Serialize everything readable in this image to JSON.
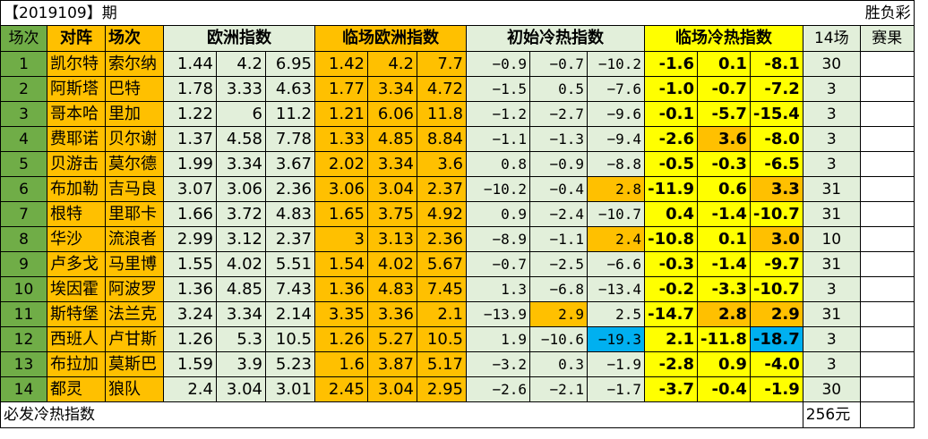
{
  "sheet": {
    "title": "【2019109】期",
    "top_right": "胜负彩",
    "footer_label": "必发冷热指数",
    "footer_value": "256元"
  },
  "headers": {
    "idx": "场次",
    "match_a": "对阵",
    "match_b": "场次",
    "euro": "欧洲指数",
    "live_euro": "临场欧洲指数",
    "init_heat": "初始冷热指数",
    "live_heat": "临场冷热指数",
    "count": "14场",
    "result": "赛果"
  },
  "rows": [
    {
      "idx": "1",
      "home": "凯尔特",
      "away": "索尔纳",
      "euro": [
        "1.44",
        "4.2",
        "6.95"
      ],
      "live_euro": [
        "1.42",
        "4.2",
        "7.7"
      ],
      "init": [
        "−0.9",
        "−0.7",
        "−10.2"
      ],
      "live": [
        "-1.6",
        "0.1",
        "-8.1"
      ],
      "count": "30",
      "result": ""
    },
    {
      "idx": "2",
      "home": "阿斯塔",
      "away": "巴特",
      "euro": [
        "1.78",
        "3.33",
        "4.63"
      ],
      "live_euro": [
        "1.77",
        "3.34",
        "4.72"
      ],
      "init": [
        "−1.5",
        "0.5",
        "−7.6"
      ],
      "live": [
        "-1.0",
        "-0.7",
        "-7.2"
      ],
      "count": "3",
      "result": ""
    },
    {
      "idx": "3",
      "home": "哥本哈",
      "away": "里加",
      "euro": [
        "1.22",
        "6",
        "11.2"
      ],
      "live_euro": [
        "1.21",
        "6.06",
        "11.8"
      ],
      "init": [
        "−1.2",
        "−2.7",
        "−9.6"
      ],
      "live": [
        "-0.1",
        "-5.7",
        "-15.4"
      ],
      "count": "3",
      "result": ""
    },
    {
      "idx": "4",
      "home": "费耶诺",
      "away": "贝尔谢",
      "euro": [
        "1.37",
        "4.58",
        "7.78"
      ],
      "live_euro": [
        "1.33",
        "4.85",
        "8.84"
      ],
      "init": [
        "−1.1",
        "−1.3",
        "−9.4"
      ],
      "live": [
        "-2.6",
        "3.6",
        "-8.0"
      ],
      "count": "3",
      "result": ""
    },
    {
      "idx": "5",
      "home": "贝游击",
      "away": "莫尔德",
      "euro": [
        "1.99",
        "3.34",
        "3.67"
      ],
      "live_euro": [
        "2.02",
        "3.34",
        "3.6"
      ],
      "init": [
        "0.8",
        "−0.9",
        "−8.8"
      ],
      "live": [
        "-0.5",
        "-0.3",
        "-6.5"
      ],
      "count": "3",
      "result": ""
    },
    {
      "idx": "6",
      "home": "布加勒",
      "away": "吉马良",
      "euro": [
        "3.07",
        "3.06",
        "2.36"
      ],
      "live_euro": [
        "3.06",
        "3.04",
        "2.37"
      ],
      "init": [
        "−10.2",
        "−0.4",
        "2.8"
      ],
      "live": [
        "-11.9",
        "0.6",
        "3.3"
      ],
      "count": "31",
      "result": ""
    },
    {
      "idx": "7",
      "home": "根特",
      "away": "里耶卡",
      "euro": [
        "1.66",
        "3.72",
        "4.83"
      ],
      "live_euro": [
        "1.65",
        "3.75",
        "4.92"
      ],
      "init": [
        "0.9",
        "−2.4",
        "−10.7"
      ],
      "live": [
        "0.4",
        "-1.4",
        "-10.7"
      ],
      "count": "31",
      "result": ""
    },
    {
      "idx": "8",
      "home": "华沙",
      "away": "流浪者",
      "euro": [
        "2.99",
        "3.12",
        "2.37"
      ],
      "live_euro": [
        "3",
        "3.13",
        "2.36"
      ],
      "init": [
        "−8.9",
        "−1.1",
        "2.4"
      ],
      "live": [
        "-10.8",
        "0.1",
        "3.0"
      ],
      "count": "10",
      "result": ""
    },
    {
      "idx": "9",
      "home": "卢多戈",
      "away": "马里博",
      "euro": [
        "1.55",
        "4.02",
        "5.51"
      ],
      "live_euro": [
        "1.54",
        "4.02",
        "5.67"
      ],
      "init": [
        "−0.7",
        "−2.5",
        "−6.6"
      ],
      "live": [
        "-0.3",
        "-1.4",
        "-9.7"
      ],
      "count": "31",
      "result": ""
    },
    {
      "idx": "10",
      "home": "埃因霍",
      "away": "阿波罗",
      "euro": [
        "1.36",
        "4.85",
        "7.43"
      ],
      "live_euro": [
        "1.36",
        "4.83",
        "7.45"
      ],
      "init": [
        "1.3",
        "−6.8",
        "−13.4"
      ],
      "live": [
        "-0.2",
        "-3.3",
        "-10.7"
      ],
      "count": "3",
      "result": ""
    },
    {
      "idx": "11",
      "home": "斯特堡",
      "away": "法兰克",
      "euro": [
        "3.24",
        "3.34",
        "2.14"
      ],
      "live_euro": [
        "3.35",
        "3.36",
        "2.1"
      ],
      "init": [
        "−13.9",
        "2.9",
        "2.5"
      ],
      "live": [
        "-14.7",
        "2.8",
        "2.9"
      ],
      "count": "31",
      "result": ""
    },
    {
      "idx": "12",
      "home": "西班人",
      "away": "卢甘斯",
      "euro": [
        "1.26",
        "5.3",
        "10.5"
      ],
      "live_euro": [
        "1.26",
        "5.27",
        "10.5"
      ],
      "init": [
        "1.9",
        "−10.6",
        "−19.3"
      ],
      "live": [
        "2.1",
        "-11.8",
        "-18.7"
      ],
      "count": "3",
      "result": ""
    },
    {
      "idx": "13",
      "home": "布拉加",
      "away": "莫斯巴",
      "euro": [
        "1.59",
        "3.9",
        "5.23"
      ],
      "live_euro": [
        "1.6",
        "3.87",
        "5.17"
      ],
      "init": [
        "−3.2",
        "0.3",
        "−1.9"
      ],
      "live": [
        "-2.8",
        "0.9",
        "-4.0"
      ],
      "count": "3",
      "result": ""
    },
    {
      "idx": "14",
      "home": "都灵",
      "away": "狼队",
      "euro": [
        "2.4",
        "3.04",
        "3.01"
      ],
      "live_euro": [
        "2.45",
        "3.04",
        "2.95"
      ],
      "init": [
        "−2.6",
        "−2.1",
        "−1.7"
      ],
      "live": [
        "-3.7",
        "-0.4",
        "-1.9"
      ],
      "count": "30",
      "result": ""
    }
  ],
  "highlights": {
    "orange_init": [
      [
        5,
        2
      ],
      [
        7,
        2
      ],
      [
        10,
        1
      ]
    ],
    "blue_init": [
      [
        11,
        2
      ]
    ],
    "orange_live": [
      [
        3,
        1
      ],
      [
        5,
        2
      ],
      [
        7,
        2
      ],
      [
        10,
        1
      ],
      [
        10,
        2
      ]
    ],
    "blue_live": [
      [
        11,
        2
      ]
    ]
  },
  "colors": {
    "green": "#70ad47",
    "orange": "#ffc000",
    "light_green": "#e2efda",
    "yellow": "#ffff00",
    "blue": "#00b0f0"
  }
}
